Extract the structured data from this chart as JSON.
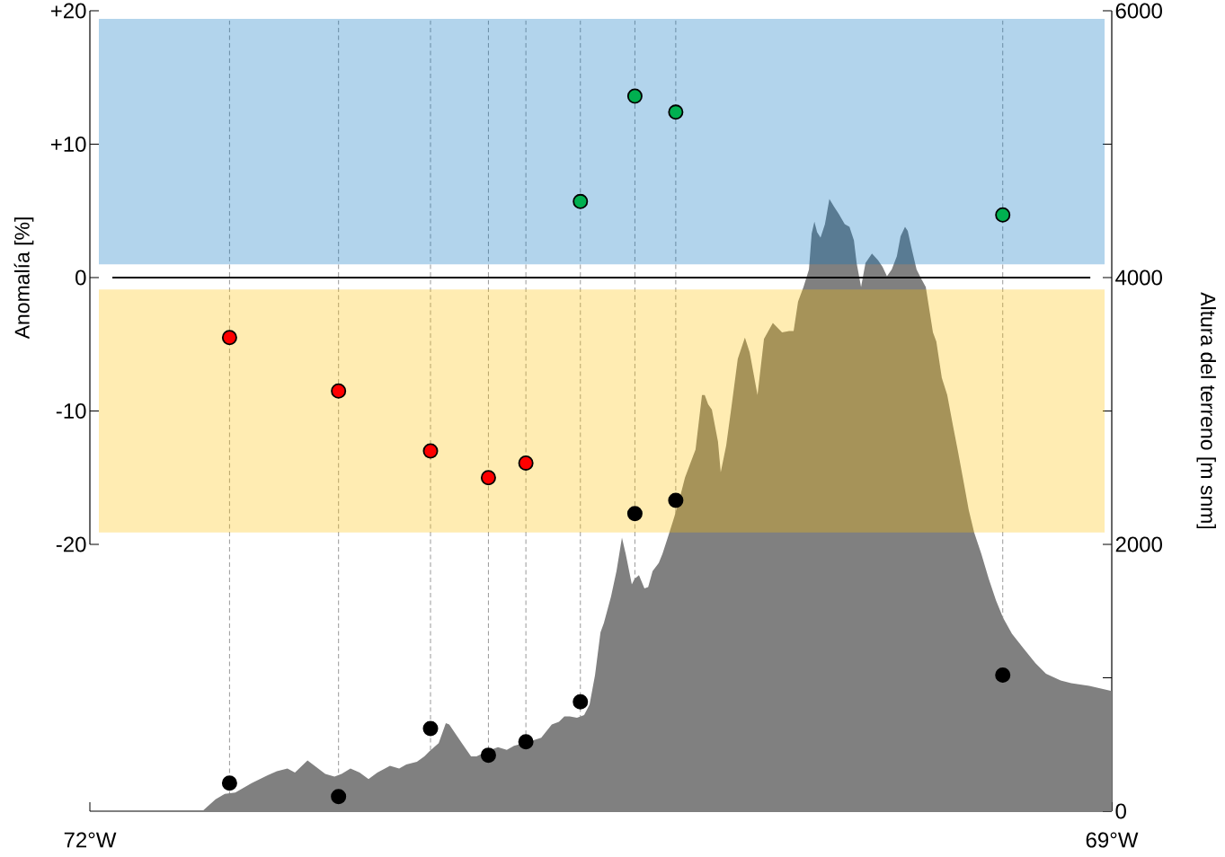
{
  "chart_data": {
    "type": "scatter",
    "ylabel": "Anomalía [%]",
    "y2label": "Altura del terreno [m snm]",
    "xlim": [
      -72,
      -69
    ],
    "xticks": [
      {
        "value": -72,
        "label": "72°W"
      },
      {
        "value": -69,
        "label": "69°W"
      }
    ],
    "ylim": [
      -40,
      20
    ],
    "yticks": [
      {
        "value": -20,
        "label": "-20"
      },
      {
        "value": -10,
        "label": "-10"
      },
      {
        "value": 0,
        "label": "0"
      },
      {
        "value": 10,
        "label": "+10"
      },
      {
        "value": 20,
        "label": "+20"
      }
    ],
    "y2lim": [
      0,
      6000
    ],
    "y2ticks": [
      {
        "value": 0,
        "label": "0"
      },
      {
        "value": 1000,
        "label": null
      },
      {
        "value": 2000,
        "label": "2000"
      },
      {
        "value": 3000,
        "label": null
      },
      {
        "value": 4000,
        "label": "4000"
      },
      {
        "value": 5000,
        "label": null
      },
      {
        "value": 6000,
        "label": "6000"
      }
    ],
    "marker": "circle",
    "bands": [
      {
        "axis": "y",
        "from": 1,
        "to": 19.4,
        "color": "#0070c0"
      },
      {
        "axis": "y",
        "from": -19.1,
        "to": -0.9,
        "color": "#ffc000"
      }
    ],
    "ref_lines": [
      {
        "axis": "y",
        "value": 0,
        "color": "#000000"
      },
      {
        "axis": "x",
        "value": -71.59,
        "color": "#999999",
        "line_style": "dashed"
      },
      {
        "axis": "x",
        "value": -71.27,
        "color": "#999999",
        "line_style": "dashed"
      },
      {
        "axis": "x",
        "value": -71,
        "color": "#999999",
        "line_style": "dashed"
      },
      {
        "axis": "x",
        "value": -70.83,
        "color": "#999999",
        "line_style": "dashed"
      },
      {
        "axis": "x",
        "value": -70.72,
        "color": "#999999",
        "line_style": "dashed"
      },
      {
        "axis": "x",
        "value": -70.56,
        "color": "#999999",
        "line_style": "dashed"
      },
      {
        "axis": "x",
        "value": -70.4,
        "color": "#999999",
        "line_style": "dashed"
      },
      {
        "axis": "x",
        "value": -70.28,
        "color": "#999999",
        "line_style": "dashed"
      },
      {
        "axis": "x",
        "value": -69.32,
        "color": "#999999",
        "line_style": "dashed"
      }
    ],
    "series": [
      {
        "type": "area",
        "axis": "y2",
        "color": "#808080",
        "marker": "none",
        "x": [
          -71.67,
          -71.631,
          -71.604,
          -71.573,
          -71.525,
          -71.478,
          -71.451,
          -71.42,
          -71.398,
          -71.361,
          -71.335,
          -71.309,
          -71.282,
          -71.261,
          -71.235,
          -71.208,
          -71.182,
          -71.156,
          -71.119,
          -71.092,
          -71.071,
          -71.04,
          -71.018,
          -71.003,
          -70.976,
          -70.955,
          -70.945,
          -70.929,
          -70.908,
          -70.881,
          -70.865,
          -70.834,
          -70.802,
          -70.776,
          -70.755,
          -70.712,
          -70.675,
          -70.644,
          -70.623,
          -70.607,
          -70.591,
          -70.57,
          -70.549,
          -70.533,
          -70.517,
          -70.501,
          -70.491,
          -70.47,
          -70.454,
          -70.438,
          -70.427,
          -70.409,
          -70.401,
          -70.388,
          -70.372,
          -70.361,
          -70.348,
          -70.33,
          -70.319,
          -70.301,
          -70.285,
          -70.269,
          -70.253,
          -70.237,
          -70.222,
          -70.203,
          -70.195,
          -70.185,
          -70.174,
          -70.156,
          -70.148,
          -70.132,
          -70.116,
          -70.098,
          -70.077,
          -70.063,
          -70.04,
          -70.021,
          -69.995,
          -69.968,
          -69.947,
          -69.934,
          -69.921,
          -69.905,
          -69.889,
          -69.881,
          -69.873,
          -69.865,
          -69.855,
          -69.842,
          -69.829,
          -69.815,
          -69.802,
          -69.784,
          -69.77,
          -69.757,
          -69.749,
          -69.736,
          -69.723,
          -69.704,
          -69.686,
          -69.673,
          -69.66,
          -69.646,
          -69.631,
          -69.62,
          -69.607,
          -69.599,
          -69.586,
          -69.573,
          -69.559,
          -69.546,
          -69.525,
          -69.515,
          -69.499,
          -69.483,
          -69.467,
          -69.451,
          -69.435,
          -69.42,
          -69.404,
          -69.383,
          -69.361,
          -69.34,
          -69.319,
          -69.293,
          -69.256,
          -69.224,
          -69.193,
          -69.15,
          -69.119,
          -69.066,
          -69.0
        ],
        "values": [
          0,
          90,
          130,
          140,
          210,
          270,
          300,
          320,
          290,
          380,
          330,
          280,
          260,
          280,
          320,
          290,
          240,
          290,
          340,
          320,
          350,
          370,
          410,
          450,
          510,
          660,
          650,
          590,
          510,
          410,
          410,
          450,
          480,
          460,
          490,
          520,
          550,
          650,
          670,
          710,
          710,
          700,
          720,
          800,
          1020,
          1340,
          1410,
          1610,
          1800,
          2050,
          1930,
          1700,
          1740,
          1770,
          1670,
          1680,
          1800,
          1860,
          1930,
          2070,
          2200,
          2340,
          2500,
          2610,
          2710,
          3120,
          3120,
          3050,
          3010,
          2770,
          2540,
          2740,
          3040,
          3390,
          3550,
          3440,
          3120,
          3540,
          3660,
          3590,
          3600,
          3600,
          3820,
          3930,
          4060,
          4330,
          4420,
          4340,
          4300,
          4400,
          4590,
          4530,
          4480,
          4400,
          4380,
          4280,
          4110,
          3930,
          4110,
          4180,
          4130,
          4080,
          4010,
          4060,
          4160,
          4310,
          4380,
          4350,
          4200,
          4060,
          3990,
          3930,
          3590,
          3520,
          3250,
          3120,
          2900,
          2690,
          2470,
          2260,
          2090,
          1930,
          1740,
          1580,
          1450,
          1330,
          1210,
          1110,
          1030,
          980,
          960,
          940,
          900
        ]
      },
      {
        "axis": "y2",
        "color": "#000000",
        "x": [
          -71.59,
          -71.27,
          -71,
          -70.83,
          -70.72,
          -70.56,
          -70.4,
          -70.28,
          -69.32
        ],
        "values": [
          210,
          110,
          620,
          420,
          520,
          820,
          2230,
          2330,
          1020
        ]
      },
      {
        "x": [
          -71.59,
          -71.27,
          -71,
          -70.83,
          -70.72,
          -70.56,
          -70.4,
          -70.28,
          -69.32
        ],
        "values": [
          -4.5,
          -8.5,
          -13,
          -15,
          -13.9,
          5.7,
          13.6,
          12.4,
          4.7
        ],
        "colors": [
          "#ff0000",
          "#ff0000",
          "#ff0000",
          "#ff0000",
          "#ff0000",
          "#00b050",
          "#00b050",
          "#00b050",
          "#00b050"
        ]
      }
    ]
  }
}
